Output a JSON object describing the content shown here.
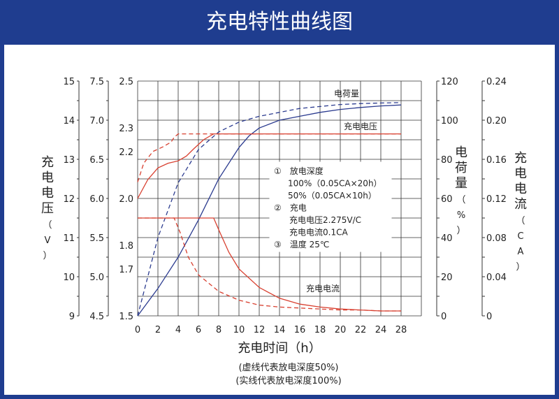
{
  "title": "充电特性曲线图",
  "chart_data": {
    "type": "line",
    "title": "充电特性曲线图",
    "xlabel": "充电时间（h）",
    "xlim": [
      0,
      28
    ],
    "x_ticks": [
      "0",
      "2",
      "4",
      "6",
      "8",
      "10",
      "12",
      "14",
      "16",
      "18",
      "20",
      "22",
      "24",
      "28"
    ],
    "y_axes": {
      "cell_voltage": {
        "ticks": [
          "1.5",
          "1.6",
          "1.7",
          "1.8",
          "1.9",
          "2.0",
          "2.1",
          "2.2",
          "2.3",
          "2.4",
          "2.5"
        ],
        "labels": [
          "1.5",
          "1.7",
          "1.8",
          "2.0",
          "2.2",
          "2.3",
          "2.5"
        ],
        "range": [
          1.5,
          2.5
        ]
      },
      "v12": {
        "label": "充电电压（V）",
        "labels": [
          "9",
          "10",
          "11",
          "12",
          "13",
          "14",
          "15"
        ],
        "range": [
          9,
          15
        ]
      },
      "v6": {
        "labels": [
          "4.5",
          "5.0",
          "5.5",
          "6.0",
          "6.5",
          "7.0",
          "7.5"
        ],
        "range": [
          4.5,
          7.5
        ]
      },
      "charge": {
        "label": "电荷量（%）",
        "labels": [
          "0",
          "20",
          "40",
          "60",
          "80",
          "100",
          "120"
        ],
        "range": [
          0,
          120
        ]
      },
      "current": {
        "label": "充电电流（CA）",
        "labels": [
          "0",
          "0.04",
          "0.08",
          "0.12",
          "0.16",
          "0.20",
          "0.24"
        ],
        "range": [
          0,
          0.24
        ]
      }
    },
    "series_labels": {
      "charge": "电荷量",
      "voltage": "充电电压",
      "current": "充电电流"
    },
    "series": [
      {
        "key": "charge_50",
        "style": "dashed",
        "axis": "charge",
        "color": "#2b3b8f",
        "x": [
          0,
          2,
          4,
          6,
          8,
          10,
          12,
          14,
          16,
          18,
          20,
          22,
          24,
          26
        ],
        "y": [
          0,
          40,
          68,
          85,
          94,
          99,
          102,
          104,
          106,
          107,
          108,
          108.5,
          108.8,
          109
        ]
      },
      {
        "key": "charge_100",
        "style": "solid",
        "axis": "charge",
        "color": "#2b3b8f",
        "x": [
          0,
          2,
          4,
          6,
          8,
          10,
          11,
          12,
          14,
          16,
          18,
          20,
          22,
          24,
          26
        ],
        "y": [
          0,
          14,
          30,
          49,
          70,
          86,
          92,
          96,
          100,
          102,
          104,
          105.5,
          106.5,
          107.3,
          107.8
        ]
      },
      {
        "key": "voltage_50",
        "style": "dashed",
        "axis": "cell_voltage",
        "color": "#d84030",
        "x": [
          0,
          0.6,
          1.5,
          2.5,
          3.3,
          3.6,
          4.0,
          26
        ],
        "y": [
          2.07,
          2.15,
          2.2,
          2.22,
          2.24,
          2.26,
          2.275,
          2.275
        ]
      },
      {
        "key": "voltage_100",
        "style": "solid",
        "axis": "cell_voltage",
        "color": "#d84030",
        "x": [
          0,
          1,
          2,
          3,
          4,
          4.8,
          5.5,
          6.5,
          7.5,
          26
        ],
        "y": [
          2.0,
          2.08,
          2.13,
          2.15,
          2.16,
          2.18,
          2.21,
          2.25,
          2.275,
          2.275
        ]
      },
      {
        "key": "current_50",
        "style": "dashed",
        "axis": "current",
        "color": "#d84030",
        "x": [
          0,
          3.6,
          4.2,
          5,
          6,
          8,
          10,
          12,
          14,
          16,
          18,
          20,
          22,
          24,
          26
        ],
        "y": [
          0.1,
          0.1,
          0.085,
          0.06,
          0.042,
          0.025,
          0.016,
          0.011,
          0.009,
          0.008,
          0.007,
          0.006,
          0.006,
          0.005,
          0.005
        ]
      },
      {
        "key": "current_100",
        "style": "solid",
        "axis": "current",
        "color": "#d84030",
        "x": [
          0,
          7.5,
          8,
          9,
          10,
          12,
          14,
          16,
          18,
          20,
          22,
          24,
          26
        ],
        "y": [
          0.1,
          0.1,
          0.088,
          0.065,
          0.048,
          0.029,
          0.018,
          0.012,
          0.009,
          0.007,
          0.006,
          0.005,
          0.005
        ]
      }
    ],
    "legend_box": {
      "lines": [
        "①　放电深度",
        "100%（0.05CA×20h）",
        "50%（0.05CA×10h）",
        "②　充电",
        "充电电压2.275V/C",
        "充电电流0.1CA",
        "③　温度 25℃"
      ]
    },
    "notes": [
      "(虚线代表放电深度50%)",
      "(实线代表放电深度100%)"
    ],
    "grid": true
  }
}
